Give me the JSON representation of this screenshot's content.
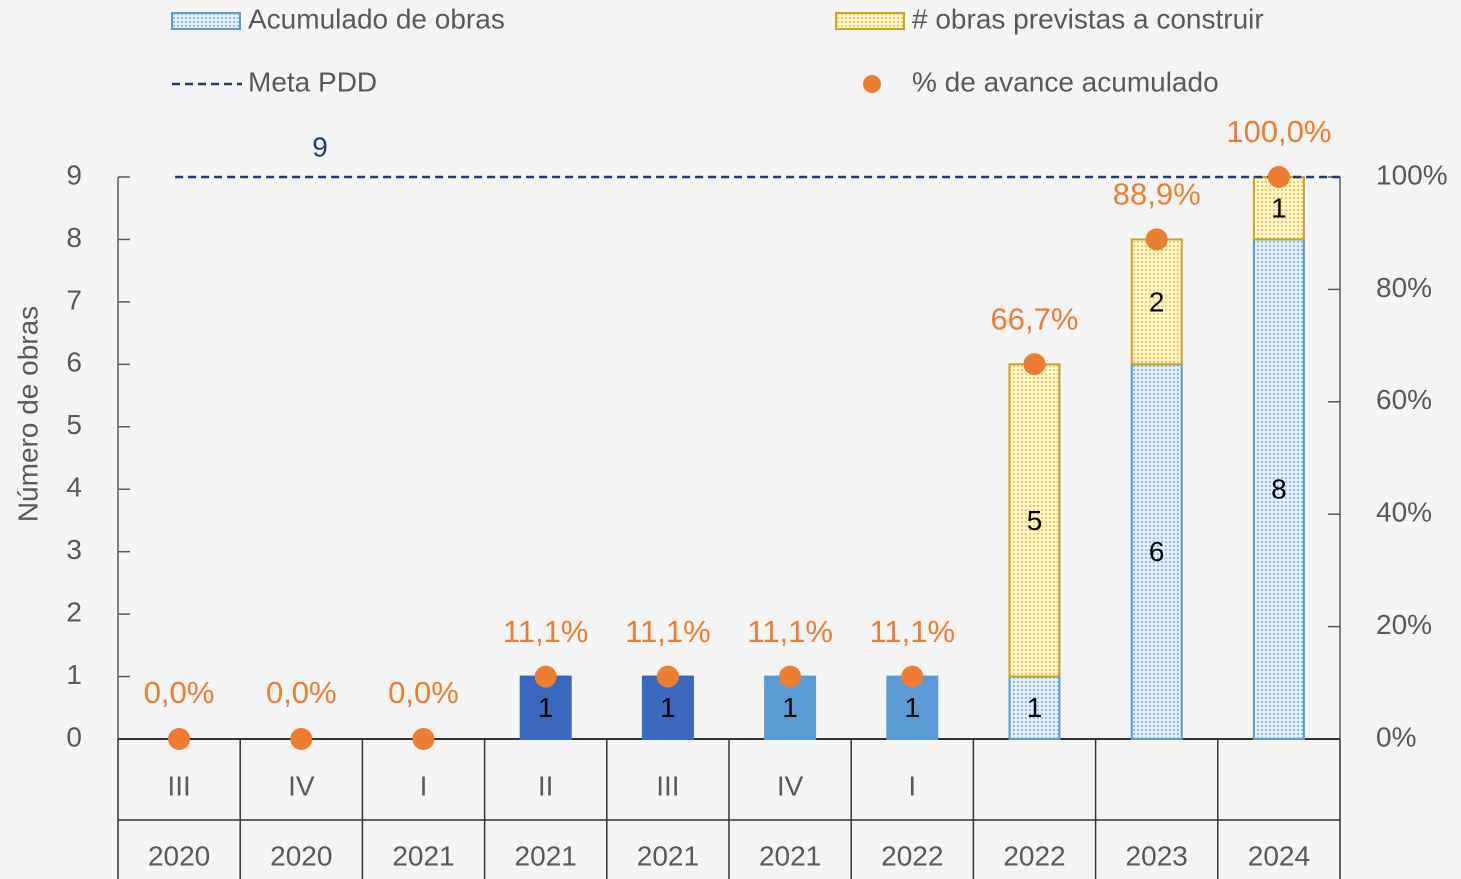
{
  "chart_data": {
    "type": "combo",
    "y_label": "Número de obras",
    "categories": [
      [
        "III",
        "2020"
      ],
      [
        "IV",
        "2020"
      ],
      [
        "I",
        "2021"
      ],
      [
        "II",
        "2021"
      ],
      [
        "III",
        "2021"
      ],
      [
        "IV",
        "2021"
      ],
      [
        "I",
        "2022"
      ],
      [
        null,
        "2022"
      ],
      [
        null,
        "2023"
      ],
      [
        null,
        "2024"
      ]
    ],
    "ylim": [
      0,
      9
    ],
    "yticks": [
      0,
      1,
      2,
      3,
      4,
      5,
      6,
      7,
      8,
      9
    ],
    "y2lim": [
      0,
      100
    ],
    "y2ticks": [
      {
        "value": 0,
        "label": "0%"
      },
      {
        "value": 20,
        "label": "20%"
      },
      {
        "value": 40,
        "label": "40%"
      },
      {
        "value": 60,
        "label": "60%"
      },
      {
        "value": 80,
        "label": "80%"
      },
      {
        "value": 100,
        "label": "100%"
      }
    ],
    "legend": "top",
    "series": [
      {
        "name": "Acumulado de obras",
        "type": "bar",
        "color": "#5b9bd5",
        "colors": [
          "#4472c4",
          "#4472c4",
          "#4472c4",
          "#3a68be",
          "#3a68be",
          "#5b9bd5",
          "#5b9bd5",
          "#5b9bd5",
          "#5b9bd5",
          "#5b9bd5"
        ],
        "patterned": [
          false,
          false,
          false,
          false,
          false,
          false,
          false,
          true,
          true,
          true
        ],
        "values": [
          0,
          0,
          0,
          1,
          1,
          1,
          1,
          1,
          6,
          8
        ]
      },
      {
        "name": "# obras previstas a construir",
        "type": "bar",
        "color": "#c9a227",
        "patterned_all": true,
        "values": [
          0,
          0,
          0,
          0,
          0,
          0,
          0,
          5,
          2,
          1
        ]
      },
      {
        "name": "Meta PDD",
        "type": "line",
        "color": "#1f3a7a",
        "dashed": true,
        "value": 9
      },
      {
        "name": "% de avance acumulado",
        "type": "scatter",
        "axis": "y2",
        "color": "#ed7d31",
        "values": [
          0,
          0,
          0,
          11.1,
          11.1,
          11.1,
          11.1,
          66.7,
          88.9,
          100
        ],
        "value_labels": [
          "0,0%",
          "0,0%",
          "0,0%",
          "11,1%",
          "11,1%",
          "11,1%",
          "11,1%",
          "66,7%",
          "88,9%",
          "100,0%"
        ]
      }
    ]
  }
}
